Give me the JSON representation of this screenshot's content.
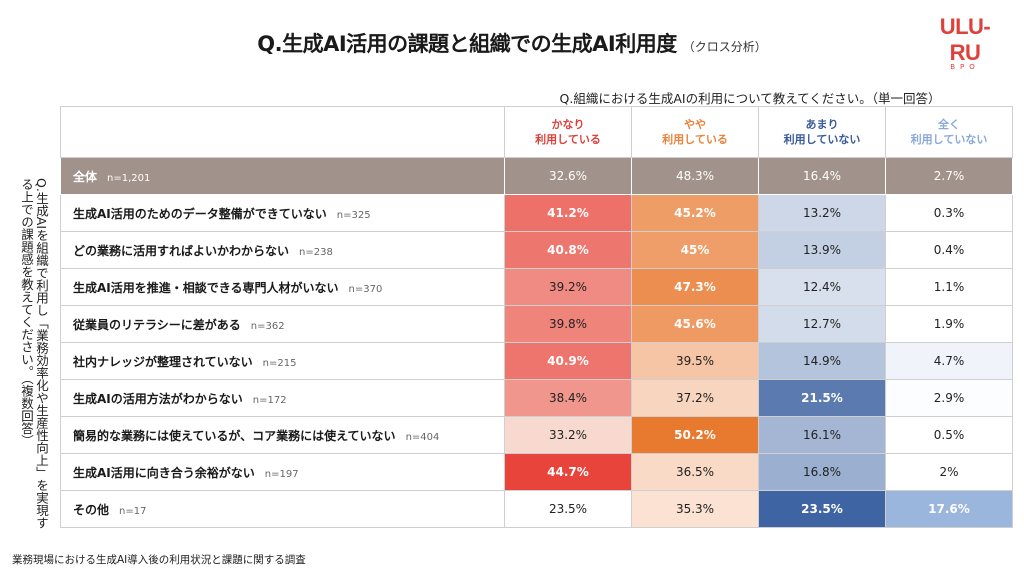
{
  "title": "Q.生成AI活用の課題と組織での生成AI利用度",
  "title_sub": "（クロス分析）",
  "logo": {
    "text": "ULU-RU",
    "sub": "BPO"
  },
  "question": "Q.組織における生成AIの利用について教えてください。（単一回答）",
  "side_question": "Q.生成AIを組織で利用し「業務効率化や生産性向上」を実現する上での課題感を教えてください。（複数回答）",
  "source": "業務現場における生成AI導入後の利用状況と課題に関する調査",
  "colors": {
    "header": [
      "#e0403a",
      "#e8823c",
      "#3a5a98",
      "#8aa8d8"
    ],
    "total_bg": "#a1938c"
  },
  "chart_data": {
    "type": "table",
    "columns": [
      {
        "line1": "かなり",
        "line2": "利用している"
      },
      {
        "line1": "やや",
        "line2": "利用している"
      },
      {
        "line1": "あまり",
        "line2": "利用していない"
      },
      {
        "line1": "全く",
        "line2": "利用していない"
      }
    ],
    "total": {
      "label": "全体",
      "n": "n=1,201",
      "values": [
        "32.6%",
        "48.3%",
        "16.4%",
        "2.7%"
      ]
    },
    "rows": [
      {
        "label": "生成AI活用のためのデータ整備ができていない",
        "n": "n=325",
        "values": [
          "41.2%",
          "45.2%",
          "13.2%",
          "0.3%"
        ],
        "bold": [
          true,
          true,
          false,
          false
        ]
      },
      {
        "label": "どの業務に活用すればよいかわからない",
        "n": "n=238",
        "values": [
          "40.8%",
          "45%",
          "13.9%",
          "0.4%"
        ],
        "bold": [
          true,
          true,
          false,
          false
        ]
      },
      {
        "label": "生成AI活用を推進・相談できる専門人材がいない",
        "n": "n=370",
        "values": [
          "39.2%",
          "47.3%",
          "12.4%",
          "1.1%"
        ],
        "bold": [
          false,
          true,
          false,
          false
        ]
      },
      {
        "label": "従業員のリテラシーに差がある",
        "n": "n=362",
        "values": [
          "39.8%",
          "45.6%",
          "12.7%",
          "1.9%"
        ],
        "bold": [
          false,
          true,
          false,
          false
        ]
      },
      {
        "label": "社内ナレッジが整理されていない",
        "n": "n=215",
        "values": [
          "40.9%",
          "39.5%",
          "14.9%",
          "4.7%"
        ],
        "bold": [
          true,
          false,
          false,
          false
        ]
      },
      {
        "label": "生成AIの活用方法がわからない",
        "n": "n=172",
        "values": [
          "38.4%",
          "37.2%",
          "21.5%",
          "2.9%"
        ],
        "bold": [
          false,
          false,
          true,
          false
        ]
      },
      {
        "label": "簡易的な業務には使えているが、コア業務には使えていない",
        "n": "n=404",
        "values": [
          "33.2%",
          "50.2%",
          "16.1%",
          "0.5%"
        ],
        "bold": [
          false,
          true,
          false,
          false
        ]
      },
      {
        "label": "生成AI活用に向き合う余裕がない",
        "n": "n=197",
        "values": [
          "44.7%",
          "36.5%",
          "16.8%",
          "2%"
        ],
        "bold": [
          true,
          false,
          false,
          false
        ]
      },
      {
        "label": "その他",
        "n": "n=17",
        "values": [
          "23.5%",
          "35.3%",
          "23.5%",
          "17.6%"
        ],
        "bold": [
          false,
          false,
          true,
          true
        ]
      }
    ]
  }
}
